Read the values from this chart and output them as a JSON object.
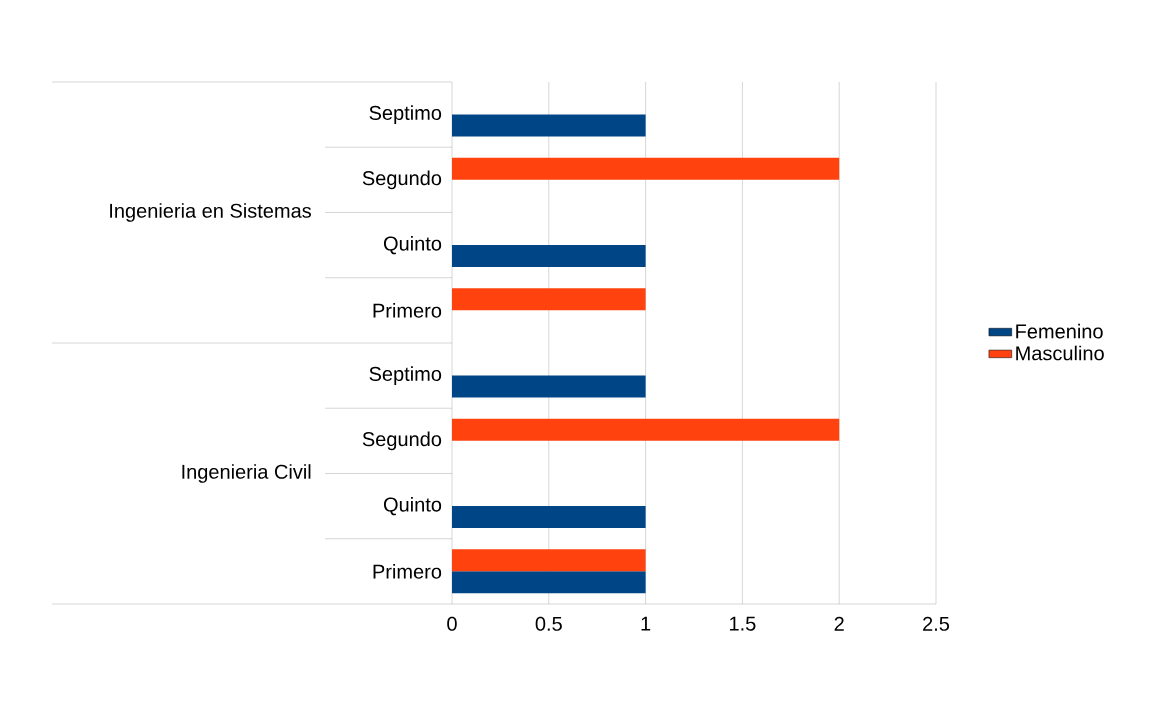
{
  "chart_data": {
    "type": "bar",
    "orientation": "horizontal",
    "categories": [
      "Septimo",
      "Segundo",
      "Quinto",
      "Primero",
      "Septimo",
      "Segundo",
      "Quinto",
      "Primero"
    ],
    "series": [
      {
        "name": "Femenino",
        "color": "#004586",
        "values": [
          1,
          null,
          1,
          null,
          1,
          null,
          1,
          1
        ]
      },
      {
        "name": "Masculino",
        "color": "#ff420e",
        "values": [
          null,
          2,
          null,
          1,
          null,
          2,
          null,
          1
        ]
      }
    ],
    "annotations": [
      "Ingenieria en Sistemas",
      "Ingenieria Civil"
    ],
    "xlim": [
      0,
      2.5
    ],
    "xticks": [
      0,
      0.5,
      1,
      1.5,
      2,
      2.5
    ],
    "grid": "x",
    "legend": "right"
  }
}
